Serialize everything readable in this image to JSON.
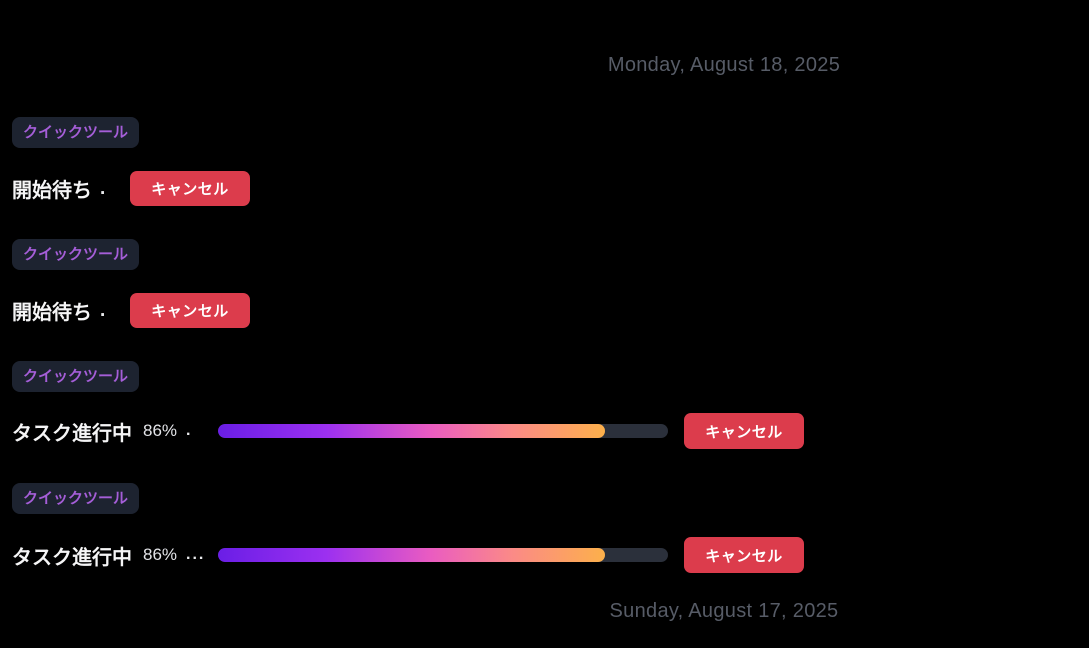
{
  "theme": {
    "background": "#000000",
    "badge_background": "#1d2330",
    "badge_text_color": "#a55ed8",
    "cancel_button_color": "#dc3c4c",
    "cancel_button_text_color": "#ffffff",
    "progress_track_color": "#2b303b",
    "progress_gradient": [
      "#6a1ee6",
      "#9c30f0",
      "#ea5cc1",
      "#fb8a87",
      "#fcb04b"
    ],
    "date_text_color": "#575c67",
    "body_text_color": "#f5f5f6"
  },
  "date_separators": [
    {
      "label": "Monday, August 18, 2025"
    },
    {
      "label": "Sunday, August 17, 2025"
    }
  ],
  "messages": [
    {
      "badge": "クイックツール",
      "status": "開始待ち",
      "suffix": ".",
      "cancel_label": "キャンセル"
    },
    {
      "badge": "クイックツール",
      "status": "開始待ち",
      "suffix": ".",
      "cancel_label": "キャンセル"
    },
    {
      "badge": "クイックツール",
      "status": "タスク進行中",
      "percent_label": "86%",
      "percent_value": 86,
      "suffix": ".",
      "cancel_label": "キャンセル"
    },
    {
      "badge": "クイックツール",
      "status": "タスク進行中",
      "percent_label": "86%",
      "percent_value": 86,
      "suffix": "...",
      "cancel_label": "キャンセル"
    }
  ]
}
